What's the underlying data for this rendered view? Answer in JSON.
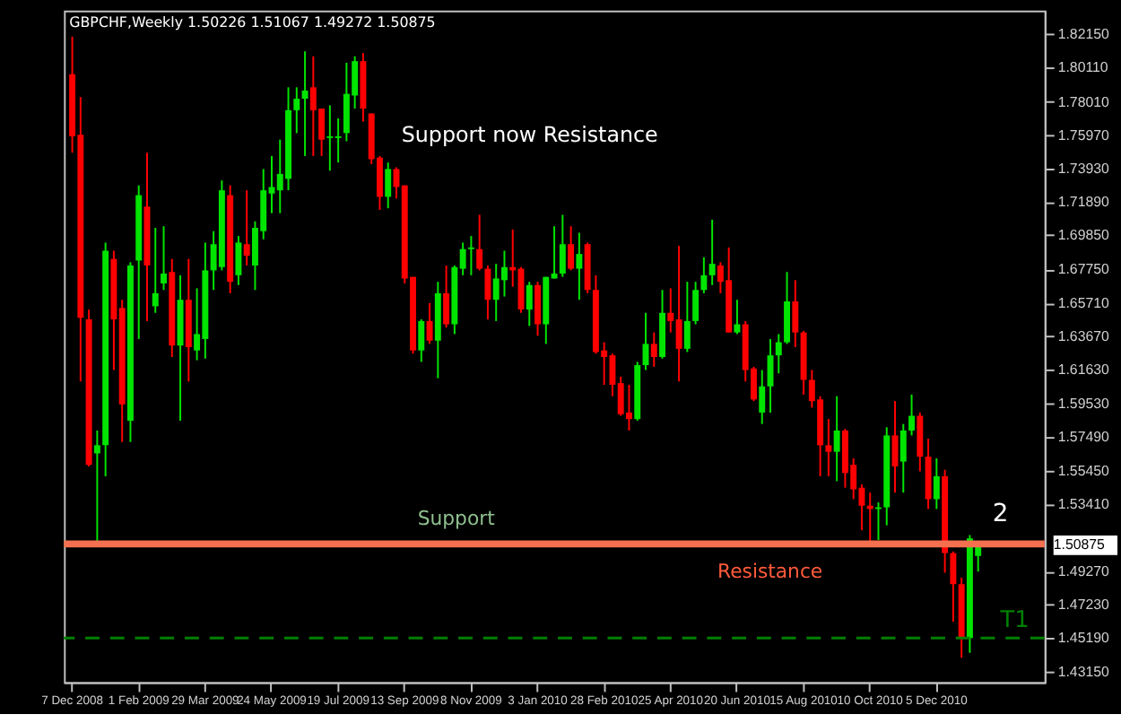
{
  "chart_data": {
    "type": "candlestick",
    "title": "GBPCHF,Weekly  1.50226 1.51067 1.49272 1.50875",
    "categories": [
      "7 Dec 2008",
      null,
      null,
      null,
      null,
      null,
      null,
      null,
      "1 Feb 2009",
      null,
      null,
      null,
      null,
      null,
      null,
      null,
      "29 Mar 2009",
      null,
      null,
      null,
      null,
      null,
      null,
      null,
      "24 May 2009",
      null,
      null,
      null,
      null,
      null,
      null,
      null,
      "19 Jul 2009",
      null,
      null,
      null,
      null,
      null,
      null,
      null,
      "13 Sep 2009",
      null,
      null,
      null,
      null,
      null,
      null,
      null,
      "8 Nov 2009",
      null,
      null,
      null,
      null,
      null,
      null,
      null,
      "3 Jan 2010",
      null,
      null,
      null,
      null,
      null,
      null,
      null,
      "28 Feb 2010",
      null,
      null,
      null,
      null,
      null,
      null,
      null,
      "25 Apr 2010",
      null,
      null,
      null,
      null,
      null,
      null,
      null,
      "20 Jun 2010",
      null,
      null,
      null,
      null,
      null,
      null,
      null,
      "15 Aug 2010",
      null,
      null,
      null,
      null,
      null,
      null,
      null,
      "10 Oct 2010",
      null,
      null,
      null,
      null,
      null,
      null,
      null,
      "5 Dec 2010",
      null,
      null,
      null,
      null,
      null
    ],
    "ohlc": [
      [
        1.797,
        1.82,
        1.749,
        1.759
      ],
      [
        1.76,
        1.783,
        1.609,
        1.648
      ],
      [
        1.647,
        1.653,
        1.557,
        1.558
      ],
      [
        1.565,
        1.579,
        1.511,
        1.57
      ],
      [
        1.57,
        1.694,
        1.551,
        1.689
      ],
      [
        1.684,
        1.689,
        1.616,
        1.647
      ],
      [
        1.654,
        1.659,
        1.572,
        1.595
      ],
      [
        1.585,
        1.682,
        1.572,
        1.68
      ],
      [
        1.683,
        1.729,
        1.635,
        1.723
      ],
      [
        1.716,
        1.749,
        1.646,
        1.68
      ],
      [
        1.655,
        1.703,
        1.651,
        1.663
      ],
      [
        1.669,
        1.704,
        1.665,
        1.675
      ],
      [
        1.676,
        1.684,
        1.624,
        1.631
      ],
      [
        1.631,
        1.674,
        1.585,
        1.659
      ],
      [
        1.659,
        1.684,
        1.609,
        1.63
      ],
      [
        1.628,
        1.666,
        1.622,
        1.638
      ],
      [
        1.635,
        1.694,
        1.623,
        1.677
      ],
      [
        1.677,
        1.701,
        1.665,
        1.693
      ],
      [
        1.679,
        1.732,
        1.677,
        1.726
      ],
      [
        1.723,
        1.729,
        1.663,
        1.67
      ],
      [
        1.674,
        1.698,
        1.668,
        1.694
      ],
      [
        1.693,
        1.726,
        1.68,
        1.686
      ],
      [
        1.68,
        1.707,
        1.665,
        1.703
      ],
      [
        1.701,
        1.739,
        1.696,
        1.726
      ],
      [
        1.724,
        1.747,
        1.712,
        1.728
      ],
      [
        1.726,
        1.757,
        1.712,
        1.736
      ],
      [
        1.733,
        1.789,
        1.726,
        1.775
      ],
      [
        1.775,
        1.789,
        1.761,
        1.782
      ],
      [
        1.782,
        1.811,
        1.747,
        1.787
      ],
      [
        1.789,
        1.808,
        1.747,
        1.775
      ],
      [
        1.776,
        1.776,
        1.747,
        1.757
      ],
      [
        1.758,
        1.778,
        1.738,
        1.759
      ],
      [
        1.758,
        1.77,
        1.743,
        1.759
      ],
      [
        1.761,
        1.804,
        1.756,
        1.785
      ],
      [
        1.784,
        1.808,
        1.776,
        1.805
      ],
      [
        1.805,
        1.81,
        1.768,
        1.776
      ],
      [
        1.773,
        1.773,
        1.742,
        1.745
      ],
      [
        1.746,
        1.747,
        1.714,
        1.722
      ],
      [
        1.722,
        1.743,
        1.715,
        1.739
      ],
      [
        1.739,
        1.74,
        1.721,
        1.728
      ],
      [
        1.729,
        1.729,
        1.669,
        1.672
      ],
      [
        1.673,
        1.673,
        1.626,
        1.628
      ],
      [
        1.628,
        1.647,
        1.621,
        1.646
      ],
      [
        1.646,
        1.657,
        1.632,
        1.634
      ],
      [
        1.634,
        1.67,
        1.611,
        1.663
      ],
      [
        1.663,
        1.68,
        1.642,
        1.644
      ],
      [
        1.644,
        1.68,
        1.638,
        1.679
      ],
      [
        1.678,
        1.694,
        1.674,
        1.69
      ],
      [
        1.69,
        1.698,
        1.674,
        1.691
      ],
      [
        1.69,
        1.711,
        1.677,
        1.678
      ],
      [
        1.678,
        1.68,
        1.647,
        1.659
      ],
      [
        1.659,
        1.681,
        1.646,
        1.672
      ],
      [
        1.671,
        1.689,
        1.661,
        1.679
      ],
      [
        1.679,
        1.702,
        1.667,
        1.677
      ],
      [
        1.678,
        1.679,
        1.651,
        1.653
      ],
      [
        1.653,
        1.67,
        1.643,
        1.668
      ],
      [
        1.668,
        1.67,
        1.637,
        1.644
      ],
      [
        1.644,
        1.673,
        1.632,
        1.673
      ],
      [
        1.672,
        1.704,
        1.672,
        1.675
      ],
      [
        1.675,
        1.711,
        1.673,
        1.693
      ],
      [
        1.693,
        1.704,
        1.677,
        1.678
      ],
      [
        1.678,
        1.7,
        1.659,
        1.687
      ],
      [
        1.693,
        1.694,
        1.663,
        1.665
      ],
      [
        1.665,
        1.674,
        1.626,
        1.627
      ],
      [
        1.628,
        1.633,
        1.607,
        1.624
      ],
      [
        1.625,
        1.626,
        1.6,
        1.607
      ],
      [
        1.608,
        1.612,
        1.588,
        1.589
      ],
      [
        1.59,
        1.607,
        1.579,
        1.586
      ],
      [
        1.586,
        1.621,
        1.585,
        1.619
      ],
      [
        1.619,
        1.651,
        1.616,
        1.632
      ],
      [
        1.632,
        1.639,
        1.618,
        1.624
      ],
      [
        1.624,
        1.665,
        1.623,
        1.651
      ],
      [
        1.651,
        1.666,
        1.639,
        1.646
      ],
      [
        1.647,
        1.692,
        1.609,
        1.629
      ],
      [
        1.629,
        1.67,
        1.627,
        1.646
      ],
      [
        1.646,
        1.67,
        1.644,
        1.665
      ],
      [
        1.665,
        1.685,
        1.663,
        1.674
      ],
      [
        1.674,
        1.708,
        1.668,
        1.681
      ],
      [
        1.68,
        1.682,
        1.663,
        1.67
      ],
      [
        1.671,
        1.691,
        1.639,
        1.639
      ],
      [
        1.639,
        1.659,
        1.638,
        1.644
      ],
      [
        1.644,
        1.646,
        1.609,
        1.616
      ],
      [
        1.617,
        1.618,
        1.597,
        1.598
      ],
      [
        1.59,
        1.616,
        1.583,
        1.606
      ],
      [
        1.606,
        1.635,
        1.59,
        1.625
      ],
      [
        1.625,
        1.638,
        1.614,
        1.633
      ],
      [
        1.633,
        1.676,
        1.632,
        1.658
      ],
      [
        1.658,
        1.671,
        1.63,
        1.639
      ],
      [
        1.639,
        1.64,
        1.601,
        1.61
      ],
      [
        1.61,
        1.616,
        1.593,
        1.597
      ],
      [
        1.598,
        1.6,
        1.551,
        1.57
      ],
      [
        1.57,
        1.586,
        1.551,
        1.566
      ],
      [
        1.566,
        1.6,
        1.548,
        1.579
      ],
      [
        1.579,
        1.58,
        1.544,
        1.553
      ],
      [
        1.558,
        1.562,
        1.537,
        1.543
      ],
      [
        1.544,
        1.546,
        1.518,
        1.533
      ],
      [
        1.533,
        1.541,
        1.509,
        1.531
      ],
      [
        1.531,
        1.535,
        1.512,
        1.532
      ],
      [
        1.532,
        1.581,
        1.521,
        1.576
      ],
      [
        1.576,
        1.597,
        1.541,
        1.557
      ],
      [
        1.56,
        1.583,
        1.541,
        1.579
      ],
      [
        1.579,
        1.601,
        1.576,
        1.588
      ],
      [
        1.588,
        1.59,
        1.554,
        1.563
      ],
      [
        1.563,
        1.574,
        1.531,
        1.537
      ],
      [
        1.537,
        1.562,
        1.531,
        1.551
      ],
      [
        1.551,
        1.555,
        1.492,
        1.504
      ],
      [
        1.504,
        1.505,
        1.462,
        1.485
      ],
      [
        1.485,
        1.489,
        1.44,
        1.452
      ],
      [
        1.452,
        1.515,
        1.443,
        1.513
      ],
      [
        1.50226,
        1.51067,
        1.49272,
        1.50875
      ]
    ],
    "colors": [
      "#ff0000",
      "#ff0000",
      "#ff0000",
      "#00e400",
      "#00e400",
      "#ff0000",
      "#ff0000",
      "#00e400",
      "#00e400",
      "#ff0000",
      "#00e400",
      "#00e400",
      "#ff0000",
      "#00e400",
      "#ff0000",
      "#00e400",
      "#00e400",
      "#00e400",
      "#00e400",
      "#ff0000",
      "#00e400",
      "#ff0000",
      "#00e400",
      "#00e400",
      "#00e400",
      "#00e400",
      "#00e400",
      "#00e400",
      "#00e400",
      "#ff0000",
      "#ff0000",
      "#00e400",
      "#00e400",
      "#00e400",
      "#00e400",
      "#ff0000",
      "#ff0000",
      "#ff0000",
      "#00e400",
      "#ff0000",
      "#ff0000",
      "#ff0000",
      "#00e400",
      "#ff0000",
      "#00e400",
      "#ff0000",
      "#00e400",
      "#00e400",
      "#00e400",
      "#ff0000",
      "#ff0000",
      "#00e400",
      "#00e400",
      "#ff0000",
      "#ff0000",
      "#00e400",
      "#ff0000",
      "#00e400",
      "#00e400",
      "#00e400",
      "#ff0000",
      "#00e400",
      "#ff0000",
      "#ff0000",
      "#ff0000",
      "#ff0000",
      "#ff0000",
      "#ff0000",
      "#00e400",
      "#00e400",
      "#ff0000",
      "#00e400",
      "#ff0000",
      "#ff0000",
      "#00e400",
      "#00e400",
      "#00e400",
      "#00e400",
      "#ff0000",
      "#ff0000",
      "#00e400",
      "#ff0000",
      "#ff0000",
      "#00e400",
      "#00e400",
      "#00e400",
      "#00e400",
      "#ff0000",
      "#ff0000",
      "#ff0000",
      "#ff0000",
      "#ff0000",
      "#00e400",
      "#ff0000",
      "#ff0000",
      "#ff0000",
      "#ff0000",
      "#00e400",
      "#00e400",
      "#ff0000",
      "#00e400",
      "#00e400",
      "#ff0000",
      "#ff0000",
      "#00e400",
      "#ff0000",
      "#ff0000",
      "#ff0000",
      "#00e400",
      "#00e400"
    ],
    "ylim": [
      1.425,
      1.836
    ],
    "yticks": [
      {
        "value": 1.8215,
        "label": "1.82150"
      },
      {
        "value": 1.8011,
        "label": "1.80110"
      },
      {
        "value": 1.7801,
        "label": "1.78010"
      },
      {
        "value": 1.7597,
        "label": "1.75970"
      },
      {
        "value": 1.7393,
        "label": "1.73930"
      },
      {
        "value": 1.7189,
        "label": "1.71890"
      },
      {
        "value": 1.6985,
        "label": "1.69850"
      },
      {
        "value": 1.6775,
        "label": "1.67750"
      },
      {
        "value": 1.6571,
        "label": "1.65710"
      },
      {
        "value": 1.6367,
        "label": "1.63670"
      },
      {
        "value": 1.6163,
        "label": "1.61630"
      },
      {
        "value": 1.5953,
        "label": "1.59530"
      },
      {
        "value": 1.5749,
        "label": "1.57490"
      },
      {
        "value": 1.5545,
        "label": "1.55450"
      },
      {
        "value": 1.5341,
        "label": "1.53410"
      },
      {
        "value": 1.4927,
        "label": "1.49270"
      },
      {
        "value": 1.4723,
        "label": "1.47230"
      },
      {
        "value": 1.4519,
        "label": "1.45190"
      },
      {
        "value": 1.4315,
        "label": "1.43150"
      }
    ],
    "ref_lines": [
      {
        "axis": "y",
        "value": 1.50875,
        "label": "1.50875",
        "color": "#808080",
        "line_style": "solid"
      },
      {
        "axis": "y",
        "value": 1.5096,
        "color": "#f4704f",
        "line_style": "solid"
      },
      {
        "axis": "y",
        "value": 1.452,
        "label": "T1",
        "color": "#008000",
        "line_style": "dashed"
      }
    ],
    "annotations": [
      "Support now Resistance",
      "Support",
      "Resistance",
      "2"
    ],
    "grid": false
  }
}
